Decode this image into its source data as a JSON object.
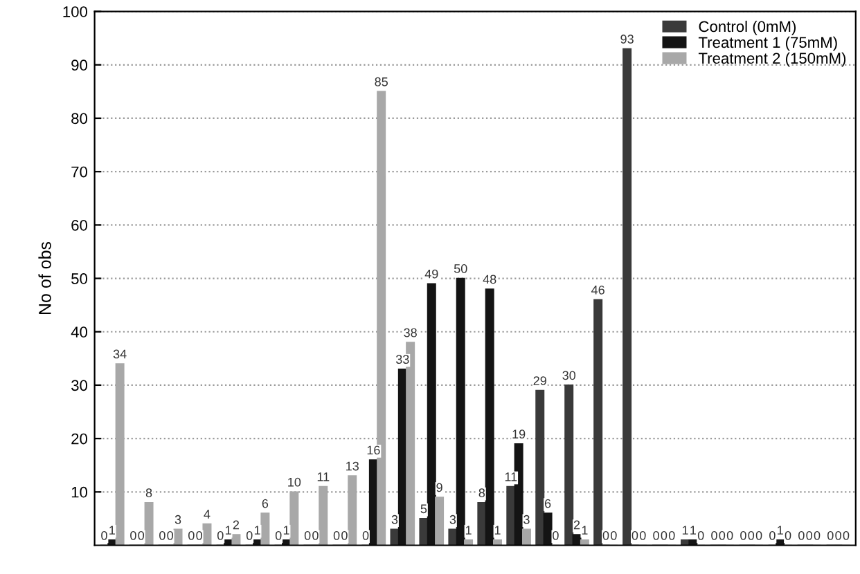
{
  "chart_data": {
    "type": "bar",
    "ylabel": "No of obs",
    "categories": [
      null,
      null,
      null,
      null,
      null,
      null,
      null,
      null,
      null,
      null,
      null,
      null,
      null,
      null,
      null,
      null,
      null,
      null,
      null,
      null,
      null,
      null,
      null,
      null,
      null,
      null
    ],
    "series": [
      {
        "name": "Control (0mM)",
        "color": "#3a3a3a",
        "values": [
          0,
          0,
          0,
          0,
          0,
          0,
          0,
          0,
          0,
          0,
          3,
          5,
          3,
          8,
          11,
          29,
          30,
          46,
          93,
          0,
          1,
          0,
          0,
          0,
          0,
          0
        ]
      },
      {
        "name": "Treatment 1 (75mM)",
        "color": "#141414",
        "values": [
          1,
          0,
          0,
          0,
          1,
          1,
          1,
          0,
          0,
          16,
          33,
          49,
          50,
          48,
          19,
          6,
          2,
          0,
          0,
          0,
          1,
          0,
          0,
          1,
          0,
          0
        ]
      },
      {
        "name": "Treatment 2 (150mM)",
        "color": "#a8a8a8",
        "values": [
          34,
          8,
          3,
          4,
          2,
          6,
          10,
          11,
          13,
          85,
          38,
          9,
          1,
          1,
          3,
          0,
          1,
          0,
          0,
          0,
          0,
          0,
          0,
          0,
          0,
          0
        ]
      }
    ],
    "ylim": [
      0,
      100
    ],
    "yticks": [
      10,
      20,
      30,
      40,
      50,
      60,
      70,
      80,
      90,
      100
    ],
    "grid": "y",
    "legend": "top right",
    "data_labels": true
  }
}
